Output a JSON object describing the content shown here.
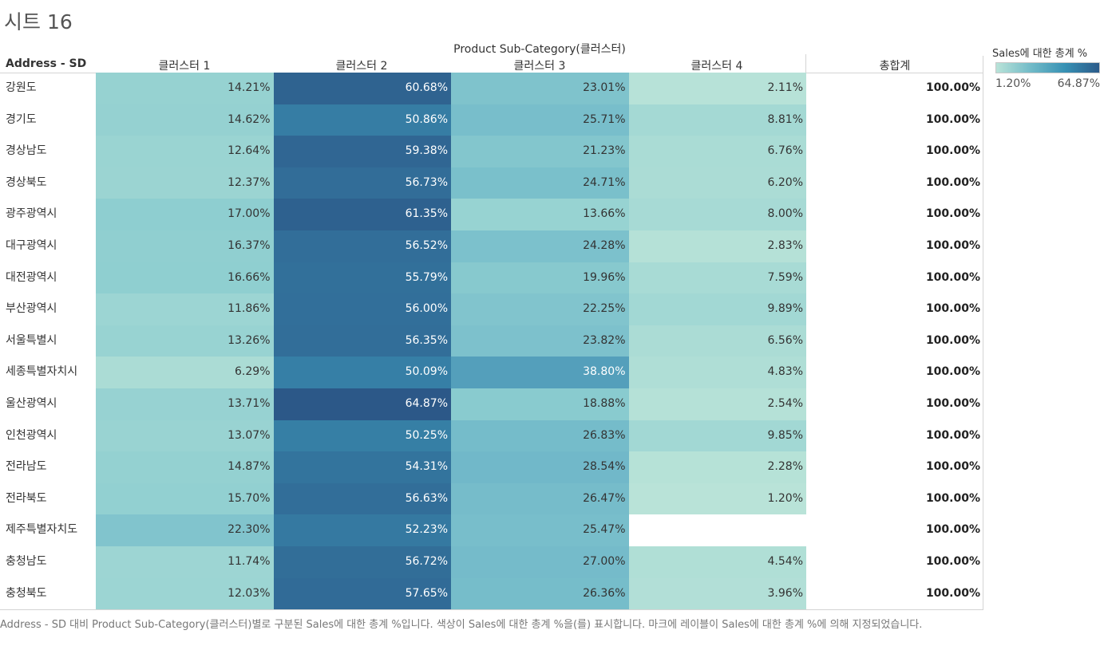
{
  "sheet_title": "시트 16",
  "caption": "Address - SD 대비 Product Sub-Category(클러스터)별로 구분된 Sales에 대한 총계 %입니다.  색상이 Sales에 대한 총계 %을(를) 표시합니다.  마크에 레이블이 Sales에 대한 총계 %에 의해 지정되었습니다.",
  "legend": {
    "title": "Sales에 대한 총계 %",
    "min_label": "1.20%",
    "max_label": "64.87%"
  },
  "colors": {
    "low": "#b9e3d8",
    "mid": "#72bbc8",
    "high": "#2c5b8a"
  },
  "chart_data": {
    "type": "heatmap",
    "title": "시트 16",
    "column_group_label": "Product Sub-Category(클러스터)",
    "row_header": "Address - SD",
    "columns": [
      "클러스터 1",
      "클러스터 2",
      "클러스터 3",
      "클러스터 4"
    ],
    "total_label": "총합계",
    "color_range": [
      1.2,
      64.87
    ],
    "rows": [
      {
        "label": "강원도",
        "values": [
          "14.21%",
          "60.68%",
          "23.01%",
          "2.11%"
        ],
        "total": "100.00%"
      },
      {
        "label": "경기도",
        "values": [
          "14.62%",
          "50.86%",
          "25.71%",
          "8.81%"
        ],
        "total": "100.00%"
      },
      {
        "label": "경상남도",
        "values": [
          "12.64%",
          "59.38%",
          "21.23%",
          "6.76%"
        ],
        "total": "100.00%"
      },
      {
        "label": "경상북도",
        "values": [
          "12.37%",
          "56.73%",
          "24.71%",
          "6.20%"
        ],
        "total": "100.00%"
      },
      {
        "label": "광주광역시",
        "values": [
          "17.00%",
          "61.35%",
          "13.66%",
          "8.00%"
        ],
        "total": "100.00%"
      },
      {
        "label": "대구광역시",
        "values": [
          "16.37%",
          "56.52%",
          "24.28%",
          "2.83%"
        ],
        "total": "100.00%"
      },
      {
        "label": "대전광역시",
        "values": [
          "16.66%",
          "55.79%",
          "19.96%",
          "7.59%"
        ],
        "total": "100.00%"
      },
      {
        "label": "부산광역시",
        "values": [
          "11.86%",
          "56.00%",
          "22.25%",
          "9.89%"
        ],
        "total": "100.00%"
      },
      {
        "label": "서울특별시",
        "values": [
          "13.26%",
          "56.35%",
          "23.82%",
          "6.56%"
        ],
        "total": "100.00%"
      },
      {
        "label": "세종특별자치시",
        "values": [
          "6.29%",
          "50.09%",
          "38.80%",
          "4.83%"
        ],
        "total": "100.00%"
      },
      {
        "label": "울산광역시",
        "values": [
          "13.71%",
          "64.87%",
          "18.88%",
          "2.54%"
        ],
        "total": "100.00%"
      },
      {
        "label": "인천광역시",
        "values": [
          "13.07%",
          "50.25%",
          "26.83%",
          "9.85%"
        ],
        "total": "100.00%"
      },
      {
        "label": "전라남도",
        "values": [
          "14.87%",
          "54.31%",
          "28.54%",
          "2.28%"
        ],
        "total": "100.00%"
      },
      {
        "label": "전라북도",
        "values": [
          "15.70%",
          "56.63%",
          "26.47%",
          "1.20%"
        ],
        "total": "100.00%"
      },
      {
        "label": "제주특별자치도",
        "values": [
          "22.30%",
          "52.23%",
          "25.47%",
          ""
        ],
        "total": "100.00%"
      },
      {
        "label": "충청남도",
        "values": [
          "11.74%",
          "56.72%",
          "27.00%",
          "4.54%"
        ],
        "total": "100.00%"
      },
      {
        "label": "충청북도",
        "values": [
          "12.03%",
          "57.65%",
          "26.36%",
          "3.96%"
        ],
        "total": "100.00%"
      }
    ]
  }
}
